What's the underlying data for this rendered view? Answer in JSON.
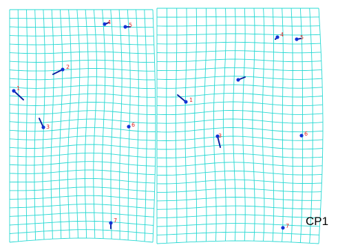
{
  "caption": "CP1",
  "colors": {
    "grid": "#22d8d2",
    "point": "#1233d6",
    "vector": "#0a1f9e",
    "label": "#e02020"
  },
  "panels": [
    {
      "name": "left",
      "landmarks": [
        {
          "id": "1",
          "label": "1"
        },
        {
          "id": "2",
          "label": "2"
        },
        {
          "id": "3",
          "label": "3"
        },
        {
          "id": "4",
          "label": "4"
        },
        {
          "id": "5",
          "label": "5"
        },
        {
          "id": "6",
          "label": "6"
        },
        {
          "id": "7",
          "label": "7"
        }
      ]
    },
    {
      "name": "right",
      "landmarks": [
        {
          "id": "1",
          "label": "1"
        },
        {
          "id": "2",
          "label": ""
        },
        {
          "id": "3",
          "label": "3"
        },
        {
          "id": "4",
          "label": "4"
        },
        {
          "id": "5",
          "label": "5"
        },
        {
          "id": "6",
          "label": "6"
        },
        {
          "id": "7",
          "label": "7"
        }
      ]
    }
  ]
}
